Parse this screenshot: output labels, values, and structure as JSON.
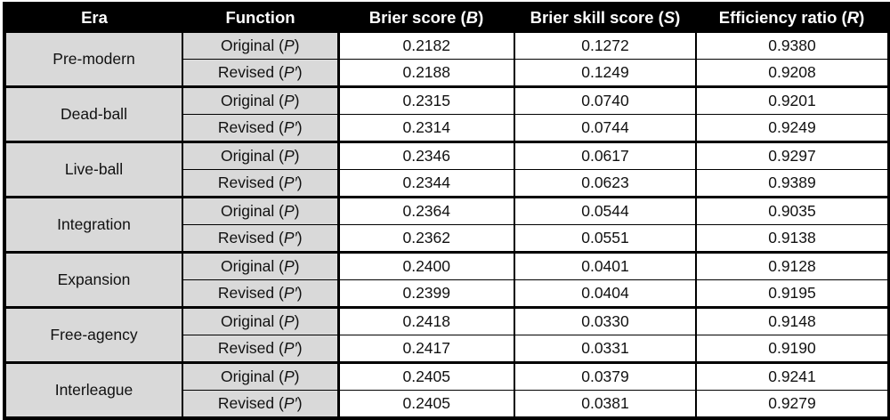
{
  "chart_data": {
    "type": "table",
    "columns": [
      "Era",
      "Function",
      "Brier score (B)",
      "Brier skill score (S)",
      "Efficiency ratio (R)"
    ],
    "groups": [
      {
        "era": "Pre-modern",
        "rows": [
          {
            "function": "Original (P)",
            "brier": "0.2182",
            "skill": "0.1272",
            "ratio": "0.9380"
          },
          {
            "function": "Revised (P′)",
            "brier": "0.2188",
            "skill": "0.1249",
            "ratio": "0.9208"
          }
        ]
      },
      {
        "era": "Dead-ball",
        "rows": [
          {
            "function": "Original (P)",
            "brier": "0.2315",
            "skill": "0.0740",
            "ratio": "0.9201"
          },
          {
            "function": "Revised (P′)",
            "brier": "0.2314",
            "skill": "0.0744",
            "ratio": "0.9249"
          }
        ]
      },
      {
        "era": "Live-ball",
        "rows": [
          {
            "function": "Original (P)",
            "brier": "0.2346",
            "skill": "0.0617",
            "ratio": "0.9297"
          },
          {
            "function": "Revised (P′)",
            "brier": "0.2344",
            "skill": "0.0623",
            "ratio": "0.9389"
          }
        ]
      },
      {
        "era": "Integration",
        "rows": [
          {
            "function": "Original (P)",
            "brier": "0.2364",
            "skill": "0.0544",
            "ratio": "0.9035"
          },
          {
            "function": "Revised (P′)",
            "brier": "0.2362",
            "skill": "0.0551",
            "ratio": "0.9138"
          }
        ]
      },
      {
        "era": "Expansion",
        "rows": [
          {
            "function": "Original (P)",
            "brier": "0.2400",
            "skill": "0.0401",
            "ratio": "0.9128"
          },
          {
            "function": "Revised (P′)",
            "brier": "0.2399",
            "skill": "0.0404",
            "ratio": "0.9195"
          }
        ]
      },
      {
        "era": "Free-agency",
        "rows": [
          {
            "function": "Original (P)",
            "brier": "0.2418",
            "skill": "0.0330",
            "ratio": "0.9148"
          },
          {
            "function": "Revised (P′)",
            "brier": "0.2417",
            "skill": "0.0331",
            "ratio": "0.9190"
          }
        ]
      },
      {
        "era": "Interleague",
        "rows": [
          {
            "function": "Original (P)",
            "brier": "0.2405",
            "skill": "0.0379",
            "ratio": "0.9241"
          },
          {
            "function": "Revised (P′)",
            "brier": "0.2405",
            "skill": "0.0381",
            "ratio": "0.9279"
          }
        ]
      }
    ]
  },
  "display": {
    "header": {
      "era": "Era",
      "function": "Function",
      "brier_prefix": "Brier score (",
      "brier_var": "B",
      "skill_prefix": "Brier skill score (",
      "skill_var": "S",
      "ratio_prefix": "Efficiency ratio (",
      "ratio_var": "R",
      "close_paren": ")"
    },
    "function_labels": {
      "original_prefix": "Original (",
      "original_var": "P",
      "revised_prefix": "Revised (",
      "revised_var": "P′",
      "close_paren": ")"
    }
  },
  "colors": {
    "header_bg": "#000000",
    "header_text": "#ffffff",
    "label_cell_bg": "#d9d9d9",
    "value_cell_bg": "#ffffff",
    "border": "#000000",
    "text": "#111111",
    "page_bg": "#ffffff"
  }
}
